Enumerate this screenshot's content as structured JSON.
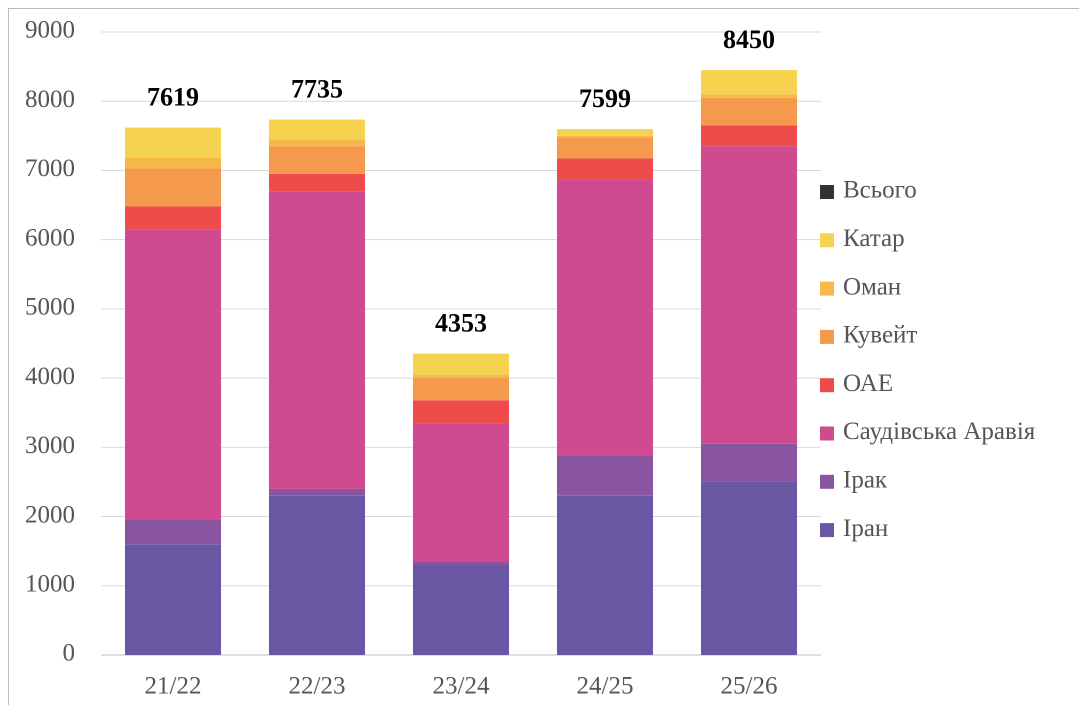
{
  "chart_data": {
    "type": "stacked_bar",
    "categories": [
      "21/22",
      "22/23",
      "23/24",
      "24/25",
      "25/26"
    ],
    "series": [
      {
        "name": "Іран",
        "color": "#6a57a3",
        "values": [
          1600,
          2300,
          1300,
          2300,
          2500
        ]
      },
      {
        "name": "Ірак",
        "color": "#8a55a0",
        "values": [
          350,
          100,
          50,
          575,
          550
        ]
      },
      {
        "name": "Саудівська Аравія",
        "color": "#d04a8f",
        "values": [
          4200,
          4300,
          2000,
          4000,
          4300
        ]
      },
      {
        "name": "ОАЕ",
        "color": "#ef4b4b",
        "values": [
          330,
          250,
          330,
          300,
          300
        ]
      },
      {
        "name": "Кувейт",
        "color": "#f59a4c",
        "values": [
          550,
          400,
          320,
          300,
          400
        ]
      },
      {
        "name": "Оман",
        "color": "#f7b84a",
        "values": [
          150,
          100,
          50,
          25,
          50
        ]
      },
      {
        "name": "Катар",
        "color": "#f5d350",
        "values": [
          439,
          285,
          303,
          99,
          350
        ]
      }
    ],
    "totals": {
      "name": "Всього",
      "color": "#333333",
      "values": [
        7619,
        7735,
        4353,
        7599,
        8450
      ]
    },
    "ylim": [
      0,
      9000
    ],
    "yticks": [
      0,
      1000,
      2000,
      3000,
      4000,
      5000,
      6000,
      7000,
      8000,
      9000
    ],
    "grid": true,
    "legend": "right"
  }
}
